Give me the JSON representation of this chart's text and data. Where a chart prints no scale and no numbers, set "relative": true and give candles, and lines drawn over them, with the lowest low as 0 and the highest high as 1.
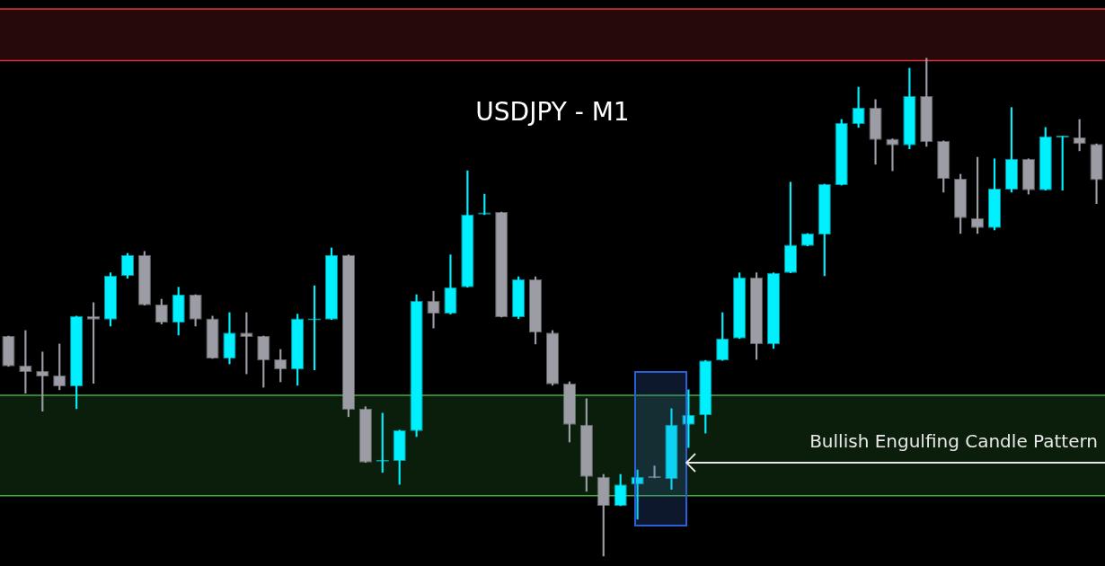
{
  "chart_data": {
    "type": "candlestick",
    "title": "USDJPY - M1",
    "relative": true,
    "categories": [
      null,
      null,
      null,
      null,
      null,
      null,
      null,
      null,
      null,
      null,
      null,
      null,
      null,
      null,
      null,
      null,
      null,
      null,
      null,
      null,
      null,
      null,
      null,
      null,
      null,
      null,
      null,
      null,
      null,
      null,
      null,
      null,
      null,
      null,
      null,
      null,
      null,
      null,
      null,
      null,
      null,
      null,
      null,
      null,
      null,
      null,
      null,
      null,
      null,
      null,
      null,
      null,
      null,
      null,
      null,
      null,
      null,
      null,
      null,
      null,
      null,
      null,
      null,
      null,
      null
    ],
    "ohlc": [
      [
        0.442,
        0.442,
        0.381,
        0.381
      ],
      [
        0.383,
        0.453,
        0.327,
        0.37
      ],
      [
        0.372,
        0.41,
        0.291,
        0.361
      ],
      [
        0.363,
        0.426,
        0.334,
        0.341
      ],
      [
        0.341,
        0.482,
        0.296,
        0.482
      ],
      [
        0.482,
        0.509,
        0.347,
        0.475
      ],
      [
        0.475,
        0.569,
        0.462,
        0.563
      ],
      [
        0.563,
        0.608,
        0.558,
        0.605
      ],
      [
        0.605,
        0.612,
        0.504,
        0.504
      ],
      [
        0.505,
        0.516,
        0.466,
        0.469
      ],
      [
        0.469,
        0.54,
        0.444,
        0.525
      ],
      [
        0.525,
        0.525,
        0.462,
        0.475
      ],
      [
        0.477,
        0.482,
        0.397,
        0.397
      ],
      [
        0.397,
        0.489,
        0.386,
        0.449
      ],
      [
        0.449,
        0.489,
        0.366,
        0.44
      ],
      [
        0.442,
        0.442,
        0.339,
        0.393
      ],
      [
        0.395,
        0.415,
        0.35,
        0.375
      ],
      [
        0.375,
        0.486,
        0.343,
        0.477
      ],
      [
        0.477,
        0.543,
        0.374,
        0.477
      ],
      [
        0.475,
        0.619,
        0.475,
        0.605
      ],
      [
        0.605,
        0.605,
        0.28,
        0.294
      ],
      [
        0.296,
        0.3,
        0.188,
        0.188
      ],
      [
        0.19,
        0.287,
        0.168,
        0.191
      ],
      [
        0.191,
        0.253,
        0.144,
        0.253
      ],
      [
        0.251,
        0.525,
        0.24,
        0.513
      ],
      [
        0.513,
        0.532,
        0.458,
        0.487
      ],
      [
        0.487,
        0.605,
        0.486,
        0.54
      ],
      [
        0.54,
        0.774,
        0.54,
        0.686
      ],
      [
        0.686,
        0.727,
        0.686,
        0.69
      ],
      [
        0.691,
        0.691,
        0.48,
        0.48
      ],
      [
        0.48,
        0.561,
        0.477,
        0.556
      ],
      [
        0.556,
        0.561,
        0.426,
        0.449
      ],
      [
        0.449,
        0.453,
        0.343,
        0.345
      ],
      [
        0.347,
        0.35,
        0.229,
        0.264
      ],
      [
        0.264,
        0.316,
        0.13,
        0.159
      ],
      [
        0.159,
        0.164,
        0,
        0.101
      ],
      [
        0.101,
        0.164,
        0.101,
        0.144
      ],
      [
        0.144,
        0.173,
        0.074,
        0.159
      ],
      [
        0.159,
        0.181,
        0.157,
        0.157
      ],
      [
        0.155,
        0.296,
        0.134,
        0.264
      ],
      [
        0.264,
        0.334,
        0.218,
        0.283
      ],
      [
        0.283,
        0.393,
        0.247,
        0.393
      ],
      [
        0.393,
        0.489,
        0.393,
        0.437
      ],
      [
        0.437,
        0.569,
        0.437,
        0.56
      ],
      [
        0.56,
        0.569,
        0.395,
        0.426
      ],
      [
        0.426,
        0.569,
        0.417,
        0.569
      ],
      [
        0.569,
        0.751,
        0.569,
        0.625
      ],
      [
        0.623,
        0.648,
        0.623,
        0.648
      ],
      [
        0.646,
        0.747,
        0.563,
        0.747
      ],
      [
        0.745,
        0.877,
        0.745,
        0.87
      ],
      [
        0.868,
        0.942,
        0.861,
        0.901
      ],
      [
        0.901,
        0.917,
        0.787,
        0.836
      ],
      [
        0.838,
        0.838,
        0.774,
        0.825
      ],
      [
        0.825,
        0.98,
        0.818,
        0.924
      ],
      [
        0.924,
        1,
        0.823,
        0.832
      ],
      [
        0.834,
        0.834,
        0.731,
        0.758
      ],
      [
        0.758,
        0.767,
        0.648,
        0.679
      ],
      [
        0.679,
        0.801,
        0.648,
        0.659
      ],
      [
        0.659,
        0.798,
        0.655,
        0.738
      ],
      [
        0.736,
        0.901,
        0.731,
        0.798
      ],
      [
        0.798,
        0.798,
        0.727,
        0.735
      ],
      [
        0.735,
        0.861,
        0.735,
        0.843
      ],
      [
        0.841,
        0.843,
        0.735,
        0.843
      ],
      [
        0.841,
        0.877,
        0.814,
        0.828
      ],
      [
        0.828,
        0.828,
        0.708,
        0.755
      ]
    ],
    "colors": [
      "#9b9ca4",
      "#9b9ca4",
      "#9b9ca4",
      "#9b9ca4",
      "#00f0ff",
      "#9b9ca4",
      "#00f0ff",
      "#00f0ff",
      "#9b9ca4",
      "#9b9ca4",
      "#00f0ff",
      "#9b9ca4",
      "#9b9ca4",
      "#00f0ff",
      "#9b9ca4",
      "#9b9ca4",
      "#9b9ca4",
      "#00f0ff",
      "#00f0ff",
      "#00f0ff",
      "#9b9ca4",
      "#9b9ca4",
      "#00f0ff",
      "#00f0ff",
      "#00f0ff",
      "#9b9ca4",
      "#00f0ff",
      "#00f0ff",
      "#00f0ff",
      "#9b9ca4",
      "#00f0ff",
      "#9b9ca4",
      "#9b9ca4",
      "#9b9ca4",
      "#9b9ca4",
      "#9b9ca4",
      "#00f0ff",
      "#00f0ff",
      "#9b9ca4",
      "#00f0ff",
      "#00f0ff",
      "#00f0ff",
      "#00f0ff",
      "#00f0ff",
      "#9b9ca4",
      "#00f0ff",
      "#00f0ff",
      "#00f0ff",
      "#00f0ff",
      "#00f0ff",
      "#00f0ff",
      "#9b9ca4",
      "#9b9ca4",
      "#00f0ff",
      "#9b9ca4",
      "#9b9ca4",
      "#9b9ca4",
      "#9b9ca4",
      "#00f0ff",
      "#00f0ff",
      "#9b9ca4",
      "#00f0ff",
      "#00f0ff",
      "#9b9ca4",
      "#9b9ca4"
    ],
    "bands": [
      {
        "axis": "y",
        "from": 0.995,
        "to": 1.099,
        "color": "#e0333a"
      },
      {
        "axis": "y",
        "from": 0.121,
        "to": 0.323,
        "color": "#3fae3f"
      }
    ],
    "ref_lines": [
      {
        "axis": "y",
        "value": 1.099,
        "color": "#e0333a"
      },
      {
        "axis": "y",
        "value": 0.995,
        "color": "#e0333a"
      },
      {
        "axis": "y",
        "value": 0.323,
        "color": "#3fae3f"
      },
      {
        "axis": "y",
        "value": 0.121,
        "color": "#3fae3f"
      }
    ],
    "annotations": [
      "Bullish Engulfing Candle Pattern"
    ]
  }
}
